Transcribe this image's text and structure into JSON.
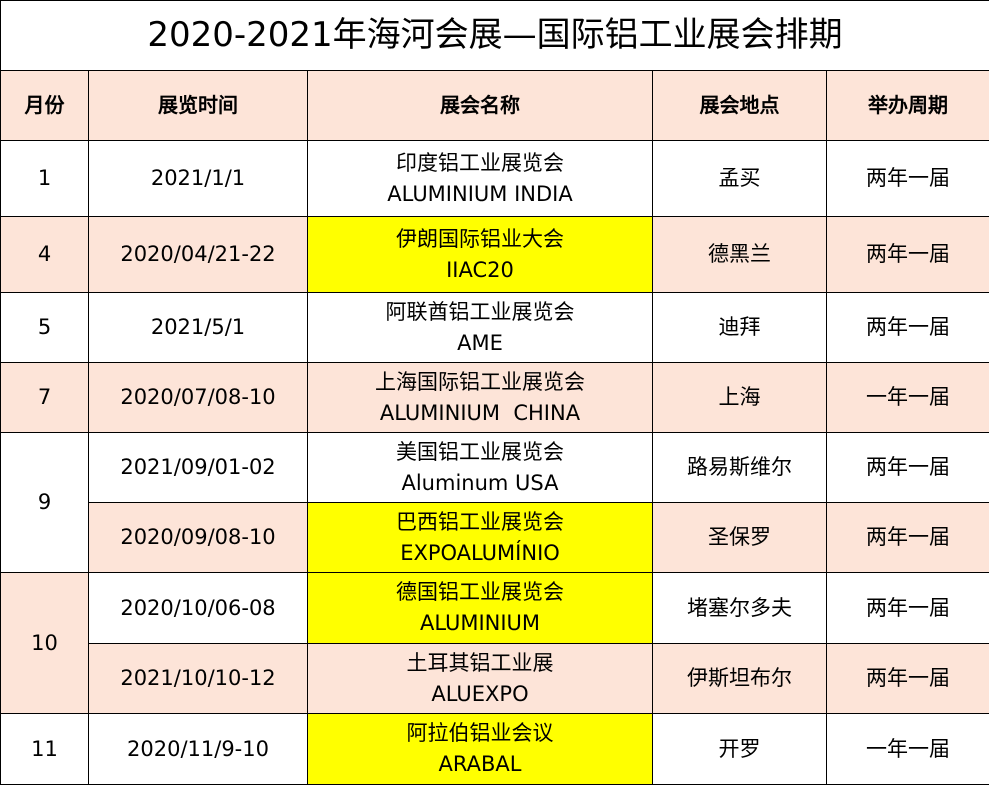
{
  "title": "2020-2021年海河会展—国际铝工业展会排期",
  "headers": [
    "月份",
    "展览时间",
    "展会名称",
    "展会地点",
    "举办周期"
  ],
  "colors": {
    "header_bg": "#fde4d8",
    "row_alt_bg": "#fde4d8",
    "highlight": "#ffff00"
  },
  "groups": [
    {
      "month": "1",
      "bg": "white",
      "rows": [
        {
          "date": "2021/1/1",
          "name_cn": "印度铝工业展览会",
          "name_en": "ALUMINIUM INDIA",
          "location": "孟买",
          "cycle": "两年一届",
          "bg": "white",
          "highlight": false
        }
      ]
    },
    {
      "month": "4",
      "bg": "peach",
      "rows": [
        {
          "date": "2020/04/21-22",
          "name_cn": "伊朗国际铝业大会",
          "name_en": "IIAC20",
          "location": "德黑兰",
          "cycle": "两年一届",
          "bg": "peach",
          "highlight": true
        }
      ]
    },
    {
      "month": "5",
      "bg": "white",
      "rows": [
        {
          "date": "2021/5/1",
          "name_cn": "阿联酋铝工业展览会",
          "name_en": "AME",
          "location": "迪拜",
          "cycle": "两年一届",
          "bg": "white",
          "highlight": false
        }
      ]
    },
    {
      "month": "7",
      "bg": "peach",
      "rows": [
        {
          "date": "2020/07/08-10",
          "name_cn": "上海国际铝工业展览会",
          "name_en": "ALUMINIUM  CHINA",
          "location": "上海",
          "cycle": "一年一届",
          "bg": "peach",
          "highlight": false
        }
      ]
    },
    {
      "month": "9",
      "bg": "white",
      "rows": [
        {
          "date": "2021/09/01-02",
          "name_cn": "美国铝工业展览会",
          "name_en": "Aluminum USA",
          "location": "路易斯维尔",
          "cycle": "两年一届",
          "bg": "white",
          "highlight": false
        },
        {
          "date": "2020/09/08-10",
          "name_cn": "巴西铝工业展览会",
          "name_en": "EXPOALUMÍNIO",
          "location": "圣保罗",
          "cycle": "两年一届",
          "bg": "peach",
          "highlight": true
        }
      ]
    },
    {
      "month": "10",
      "bg": "peach",
      "rows": [
        {
          "date": "2020/10/06-08",
          "name_cn": "德国铝工业展览会",
          "name_en": "ALUMINIUM",
          "location": "堵塞尔多夫",
          "cycle": "两年一届",
          "bg": "white",
          "highlight": true
        },
        {
          "date": "2021/10/10-12",
          "name_cn": "土耳其铝工业展",
          "name_en": "ALUEXPO",
          "location": "伊斯坦布尔",
          "cycle": "两年一届",
          "bg": "peach",
          "highlight": false
        }
      ]
    },
    {
      "month": "11",
      "bg": "white",
      "rows": [
        {
          "date": "2020/11/9-10",
          "name_cn": "阿拉伯铝业会议",
          "name_en": "ARABAL",
          "location": "开罗",
          "cycle": "一年一届",
          "bg": "white",
          "highlight": true
        }
      ]
    }
  ]
}
